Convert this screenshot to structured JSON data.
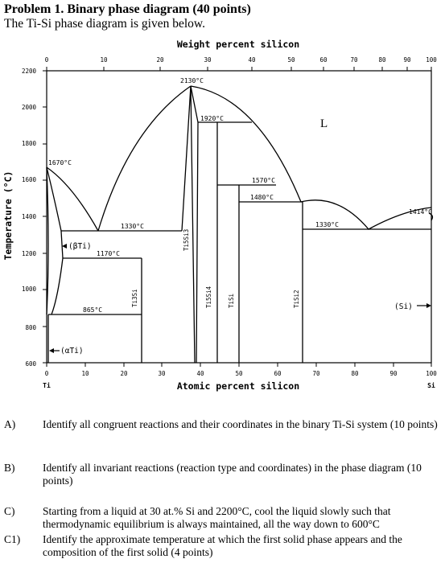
{
  "header": {
    "title": "Problem 1. Binary phase diagram (40 points)",
    "subtitle": "The Ti-Si phase diagram is given below."
  },
  "diagram": {
    "top_axis_title": "Weight percent silicon",
    "bottom_axis_title": "Atomic percent silicon",
    "y_axis_title": "Temperature (°C)",
    "top_ticks": [
      "0",
      "10",
      "20",
      "30",
      "40",
      "50",
      "60",
      "70",
      "80",
      "90",
      "100"
    ],
    "bottom_ticks": [
      "0",
      "10",
      "20",
      "30",
      "40",
      "50",
      "60",
      "70",
      "80",
      "90",
      "100"
    ],
    "y_ticks": [
      "600",
      "800",
      "1000",
      "1200",
      "1400",
      "1600",
      "1800",
      "2000",
      "2200"
    ],
    "end_left": "Ti",
    "end_right": "Si",
    "labels": {
      "liquid": "L",
      "t2130": "2130°C",
      "t1920": "1920°C",
      "t1670": "1670°C",
      "t1570": "1570°C",
      "t1480": "1480°C",
      "t1414": "1414°C",
      "t1330a": "1330°C",
      "t1330b": "1330°C",
      "t1170": "1170°C",
      "t865": "865°C",
      "beta_ti": "(βTi)",
      "alpha_ti": "(αTi)",
      "si_phase": "(Si)",
      "ti5si3": "Ti5Si3",
      "ti5si4": "Ti5Si4",
      "tisi": "TiSi",
      "tisi2": "TiSi2",
      "ti3si": "Ti3Si"
    }
  },
  "questions": {
    "a_label": "A)",
    "a_text": "Identify all congruent reactions and their coordinates in the binary Ti-Si system (10 points)",
    "b_label": "B)",
    "b_text": "Identify all invariant reactions (reaction type and coordinates) in the phase diagram (10 points)",
    "c_label": "C)",
    "c_text": "Starting from a liquid at 30 at.% Si and 2200°C, cool the liquid slowly such that thermodynamic equilibrium is always maintained, all the way down to 600°C",
    "c1_label": "C1)",
    "c1_text": "Identify the approximate temperature at which the first solid phase appears and the composition of the first solid (4 points)"
  }
}
